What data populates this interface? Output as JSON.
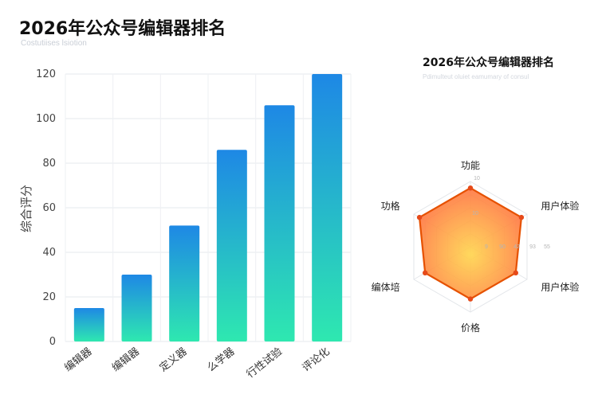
{
  "page": {
    "title": "2026年公众号编辑器排名",
    "subtitle": "Costutiises lsiotion"
  },
  "colors": {
    "bar_top": "#1e88e5",
    "bar_bottom": "#2ee8b0",
    "radar_center": "#ffd54f",
    "radar_edge": "#ff7043",
    "radar_stroke": "#e65100",
    "radar_point": "#e64a19"
  },
  "chart_data": [
    {
      "type": "bar",
      "title": "",
      "xlabel": "",
      "ylabel": "综合评分",
      "ylim": [
        0,
        120
      ],
      "yticks": [
        0,
        20,
        40,
        60,
        80,
        100,
        120
      ],
      "grid": true,
      "categories": [
        "编辑器",
        "编辑器",
        "定义器",
        "么学器",
        "行性试验",
        "评论化"
      ],
      "values": [
        15,
        30,
        52,
        86,
        106,
        120
      ]
    },
    {
      "type": "radar",
      "title": "2026年公众号编辑器排名",
      "subtitle": "Pdimulteut oluiet eamumary of consul",
      "axes": [
        "功能",
        "用户体验",
        "用户体验",
        "价格",
        "编体培",
        "功格"
      ],
      "max": 10,
      "values": [
        9,
        9,
        8,
        8,
        8,
        9
      ],
      "ring_labels": [
        "10",
        "10",
        "9",
        "90",
        "42",
        "93",
        "55"
      ]
    }
  ]
}
